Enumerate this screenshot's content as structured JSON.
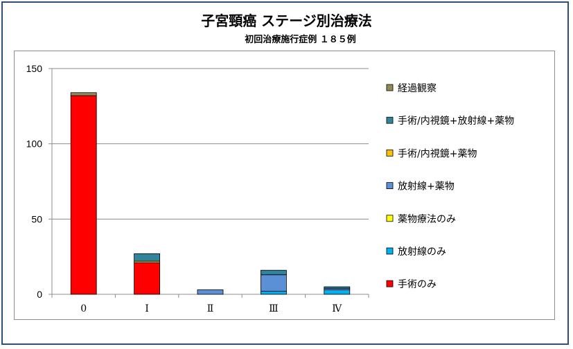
{
  "chart_data": {
    "type": "bar",
    "stacked": true,
    "title": "子宮頸癌 ステージ別治療法",
    "subtitle": "初回治療施行症例 １８５例",
    "categories": [
      "0",
      "Ⅰ",
      "Ⅱ",
      "Ⅲ",
      "Ⅳ"
    ],
    "ylim": [
      0,
      150
    ],
    "yticks": [
      0,
      50,
      100,
      150
    ],
    "grid": true,
    "legend_position": "right",
    "series": [
      {
        "name": "手術のみ",
        "color": "#ff0000",
        "values": [
          132,
          21,
          0,
          0,
          0
        ]
      },
      {
        "name": "放射線のみ",
        "color": "#00b0f0",
        "values": [
          0,
          0,
          0,
          2,
          3
        ]
      },
      {
        "name": "薬物療法のみ",
        "color": "#ffff00",
        "values": [
          0,
          0,
          0,
          0,
          0
        ]
      },
      {
        "name": "手術/内視鏡+薬物",
        "color": "#ffc000",
        "values": [
          0,
          1,
          0,
          0,
          0
        ]
      },
      {
        "name": "放射線+薬物",
        "color": "#5b8fd6",
        "values": [
          0,
          0,
          3,
          11,
          1
        ]
      },
      {
        "name": "手術/内視鏡+放射線+薬物",
        "color": "#31849b",
        "values": [
          0,
          5,
          0,
          3,
          1
        ]
      },
      {
        "name": "経過観察",
        "color": "#948a54",
        "values": [
          2,
          0,
          0,
          0,
          0
        ]
      }
    ],
    "legend_order": [
      "経過観察",
      "手術/内視鏡+放射線+薬物",
      "手術/内視鏡+薬物",
      "放射線+薬物",
      "薬物療法のみ",
      "放射線のみ",
      "手術のみ"
    ]
  }
}
